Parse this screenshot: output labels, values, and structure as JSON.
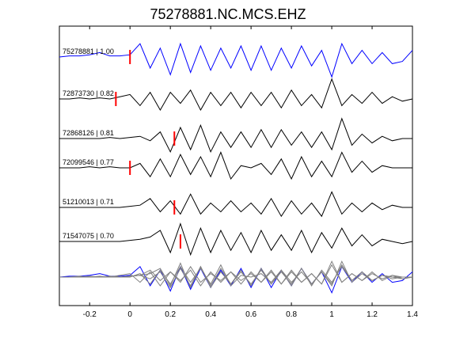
{
  "chart_data": {
    "type": "line",
    "title": "75278881.NC.MCS.EHZ",
    "xlabel": "",
    "ylabel": "",
    "xlim": [
      -0.35,
      1.4
    ],
    "xticks": [
      -0.2,
      0,
      0.2,
      0.4,
      0.6,
      0.8,
      1,
      1.2,
      1.4
    ],
    "xtick_labels": [
      "-0.2",
      "0",
      "0.2",
      "0.4",
      "0.6",
      "0.8",
      "1",
      "1.2",
      "1.4"
    ],
    "grid": false,
    "colors": {
      "reference": "#0000ff",
      "trace": "#000000",
      "pick": "#ff0000",
      "stack": "#808080"
    },
    "traces": [
      {
        "id": "75278881",
        "cc": "1.00",
        "label": "75278881 | 1.00",
        "pick_time": 0.0,
        "x": [
          -0.35,
          -0.3,
          -0.25,
          -0.2,
          -0.15,
          -0.1,
          -0.05,
          0.0,
          0.05,
          0.1,
          0.15,
          0.2,
          0.25,
          0.3,
          0.35,
          0.4,
          0.45,
          0.5,
          0.55,
          0.6,
          0.65,
          0.7,
          0.75,
          0.8,
          0.85,
          0.9,
          0.95,
          1.0,
          1.05,
          1.1,
          1.15,
          1.2,
          1.25,
          1.3,
          1.35,
          1.4
        ],
        "y": [
          0.0,
          0.05,
          0.05,
          0.1,
          0.2,
          0.05,
          0.05,
          0.1,
          0.6,
          -0.5,
          0.4,
          -0.8,
          0.6,
          -0.7,
          0.5,
          -0.6,
          0.4,
          -0.5,
          0.5,
          -0.6,
          0.5,
          -0.6,
          0.4,
          -0.5,
          0.5,
          -0.4,
          0.3,
          -0.9,
          0.6,
          -0.3,
          0.3,
          -0.3,
          0.2,
          -0.3,
          -0.2,
          0.3
        ]
      },
      {
        "id": "72873730",
        "cc": "0.82",
        "label": "72873730 | 0.82",
        "pick_time": -0.07,
        "x": [
          -0.35,
          -0.3,
          -0.25,
          -0.2,
          -0.15,
          -0.1,
          -0.05,
          0.0,
          0.05,
          0.1,
          0.15,
          0.2,
          0.25,
          0.3,
          0.35,
          0.4,
          0.45,
          0.5,
          0.55,
          0.6,
          0.65,
          0.7,
          0.75,
          0.8,
          0.85,
          0.9,
          0.95,
          1.0,
          1.05,
          1.1,
          1.15,
          1.2,
          1.25,
          1.3,
          1.35,
          1.4
        ],
        "y": [
          0.0,
          0.0,
          0.05,
          0.0,
          0.05,
          0.0,
          0.1,
          0.2,
          -0.3,
          0.3,
          -0.5,
          0.3,
          -0.2,
          0.4,
          -0.5,
          0.3,
          -0.3,
          0.3,
          -0.4,
          0.3,
          -0.3,
          0.3,
          -0.4,
          0.4,
          -0.3,
          0.2,
          -0.4,
          0.9,
          -0.3,
          0.2,
          -0.2,
          0.3,
          -0.2,
          0.1,
          -0.1,
          0.0
        ]
      },
      {
        "id": "72868126",
        "cc": "0.81",
        "label": "72868126 | 0.81",
        "pick_time": 0.22,
        "x": [
          -0.35,
          -0.3,
          -0.25,
          -0.2,
          -0.15,
          -0.1,
          -0.05,
          0.0,
          0.05,
          0.1,
          0.15,
          0.2,
          0.25,
          0.3,
          0.35,
          0.4,
          0.45,
          0.5,
          0.55,
          0.6,
          0.65,
          0.7,
          0.75,
          0.8,
          0.85,
          0.9,
          0.95,
          1.0,
          1.05,
          1.1,
          1.15,
          1.2,
          1.25,
          1.3,
          1.35,
          1.4
        ],
        "y": [
          0.0,
          0.0,
          0.0,
          0.0,
          0.0,
          0.05,
          0.0,
          0.05,
          0.1,
          -0.1,
          0.3,
          -0.6,
          0.5,
          -0.5,
          0.6,
          -0.6,
          0.3,
          -0.4,
          0.3,
          -0.4,
          0.4,
          -0.4,
          0.4,
          -0.3,
          0.3,
          -0.4,
          0.3,
          -0.5,
          0.9,
          -0.3,
          0.2,
          -0.2,
          0.1,
          -0.1,
          0.0,
          0.0
        ]
      },
      {
        "id": "72099546",
        "cc": "0.77",
        "label": "72099546 | 0.77",
        "pick_time": 0.0,
        "x": [
          -0.35,
          -0.3,
          -0.25,
          -0.2,
          -0.15,
          -0.1,
          -0.05,
          0.0,
          0.05,
          0.1,
          0.15,
          0.2,
          0.25,
          0.3,
          0.35,
          0.4,
          0.45,
          0.5,
          0.55,
          0.6,
          0.65,
          0.7,
          0.75,
          0.8,
          0.85,
          0.9,
          0.95,
          1.0,
          1.05,
          1.1,
          1.15,
          1.2,
          1.25,
          1.3,
          1.35,
          1.4
        ],
        "y": [
          0.0,
          0.0,
          0.0,
          0.05,
          0.0,
          0.05,
          0.0,
          0.0,
          0.2,
          -0.4,
          0.4,
          -0.4,
          0.6,
          -0.3,
          0.5,
          -0.4,
          0.7,
          -0.5,
          0.1,
          0.0,
          0.2,
          -0.3,
          0.4,
          -0.5,
          0.5,
          -0.4,
          0.3,
          -0.4,
          0.7,
          -0.2,
          0.3,
          -0.2,
          0.1,
          0.0,
          0.0,
          0.0
        ]
      },
      {
        "id": "51210013",
        "cc": "0.71",
        "label": "51210013 | 0.71",
        "pick_time": 0.22,
        "x": [
          -0.35,
          -0.3,
          -0.25,
          -0.2,
          -0.15,
          -0.1,
          -0.05,
          0.0,
          0.05,
          0.1,
          0.15,
          0.2,
          0.25,
          0.3,
          0.35,
          0.4,
          0.45,
          0.5,
          0.55,
          0.6,
          0.65,
          0.7,
          0.75,
          0.8,
          0.85,
          0.9,
          0.95,
          1.0,
          1.05,
          1.1,
          1.15,
          1.2,
          1.25,
          1.3,
          1.35,
          1.4
        ],
        "y": [
          0.0,
          0.0,
          0.0,
          0.0,
          0.0,
          0.0,
          0.0,
          0.05,
          0.1,
          0.4,
          -0.2,
          0.3,
          -0.3,
          0.6,
          -0.3,
          0.2,
          -0.2,
          0.3,
          -0.2,
          0.2,
          -0.3,
          0.4,
          -0.4,
          0.3,
          -0.3,
          0.2,
          -0.4,
          0.7,
          -0.3,
          0.2,
          -0.2,
          0.2,
          -0.1,
          0.1,
          0.0,
          0.0
        ]
      },
      {
        "id": "71547075",
        "cc": "0.70",
        "label": "71547075 | 0.70",
        "pick_time": 0.25,
        "x": [
          -0.35,
          -0.3,
          -0.25,
          -0.2,
          -0.15,
          -0.1,
          -0.05,
          0.0,
          0.05,
          0.1,
          0.15,
          0.2,
          0.25,
          0.3,
          0.35,
          0.4,
          0.45,
          0.5,
          0.55,
          0.6,
          0.65,
          0.7,
          0.75,
          0.8,
          0.85,
          0.9,
          0.95,
          1.0,
          1.05,
          1.1,
          1.15,
          1.2,
          1.25,
          1.3,
          1.35,
          1.4
        ],
        "y": [
          0.0,
          0.0,
          0.0,
          0.0,
          0.0,
          0.0,
          0.0,
          0.05,
          0.1,
          0.2,
          0.5,
          -0.5,
          0.8,
          -0.6,
          0.6,
          -0.5,
          0.5,
          -0.4,
          0.4,
          -0.5,
          0.5,
          -0.4,
          0.3,
          -0.4,
          0.5,
          -0.5,
          0.4,
          -0.3,
          0.6,
          -0.2,
          0.3,
          -0.2,
          0.1,
          0.0,
          -0.1,
          0.0
        ]
      }
    ]
  }
}
